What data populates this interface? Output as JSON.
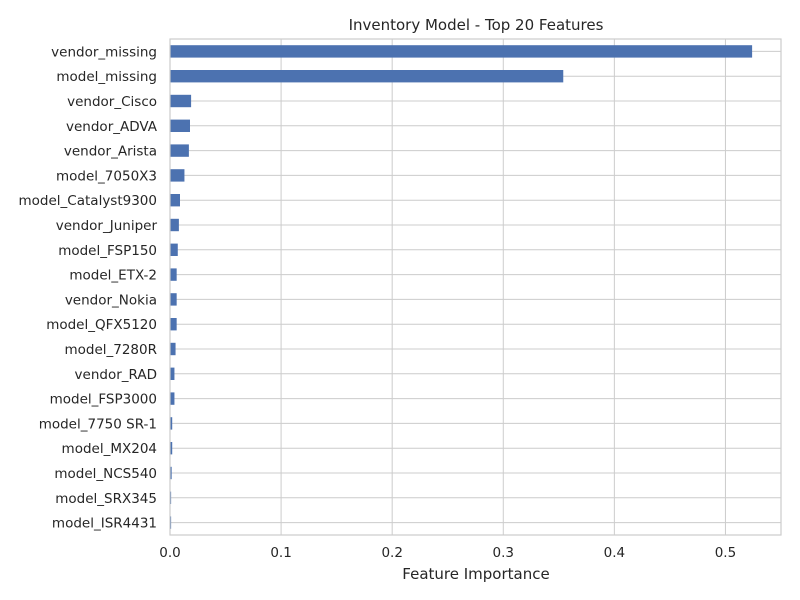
{
  "chart_data": {
    "type": "bar",
    "orientation": "horizontal",
    "title": "Inventory Model - Top 20 Features",
    "xlabel": "Feature Importance",
    "ylabel": "",
    "xlim": [
      0,
      0.55
    ],
    "xticks": [
      0.0,
      0.1,
      0.2,
      0.3,
      0.4,
      0.5
    ],
    "xtick_labels": [
      "0.0",
      "0.1",
      "0.2",
      "0.3",
      "0.4",
      "0.5"
    ],
    "grid": true,
    "bar_color": "#4c72b0",
    "categories": [
      "vendor_missing",
      "model_missing",
      "vendor_Cisco",
      "vendor_ADVA",
      "vendor_Arista",
      "model_7050X3",
      "model_Catalyst9300",
      "vendor_Juniper",
      "model_FSP150",
      "model_ETX-2",
      "vendor_Nokia",
      "model_QFX5120",
      "model_7280R",
      "vendor_RAD",
      "model_FSP3000",
      "model_7750 SR-1",
      "model_MX204",
      "model_NCS540",
      "model_SRX345",
      "model_ISR4431"
    ],
    "values": [
      0.524,
      0.354,
      0.019,
      0.018,
      0.017,
      0.013,
      0.009,
      0.008,
      0.007,
      0.006,
      0.006,
      0.006,
      0.005,
      0.004,
      0.004,
      0.002,
      0.002,
      0.0015,
      0.001,
      0.001
    ]
  }
}
